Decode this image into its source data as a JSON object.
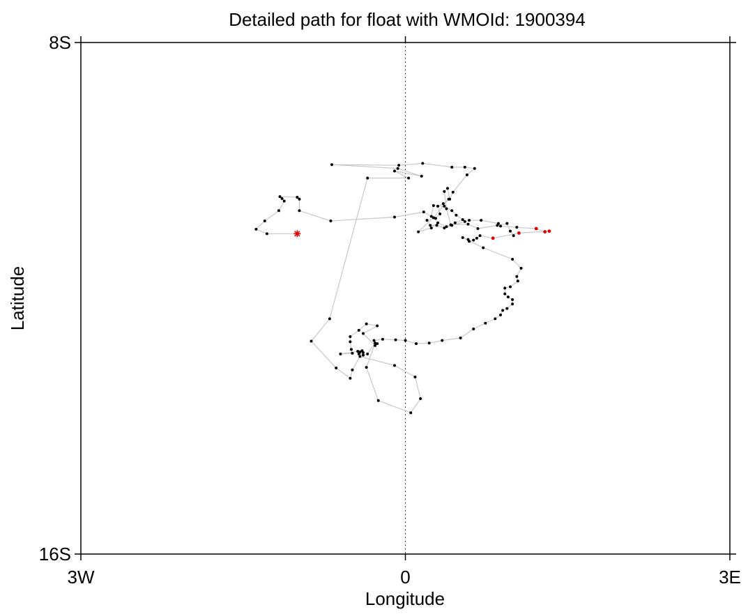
{
  "chart_data": {
    "type": "scatter",
    "title": "Detailed path for float with WMOId: 1900394",
    "xlabel": "Longitude",
    "ylabel": "Latitude",
    "xlim": [
      -3,
      3
    ],
    "ylim": [
      -16,
      -8
    ],
    "x_ticks": [
      {
        "value": -3,
        "label": "3W"
      },
      {
        "value": 0,
        "label": "0"
      },
      {
        "value": 3,
        "label": "3E"
      }
    ],
    "y_ticks": [
      {
        "value": -8,
        "label": "8S"
      },
      {
        "value": -16,
        "label": "16S"
      }
    ],
    "zero_meridian": "dotted",
    "grid": false,
    "legend": "none",
    "colors": {
      "points": "#000000",
      "path": "#c8c8c8",
      "recent": "#dd0000",
      "deploy": "#dd0000"
    },
    "deployment": {
      "x": -1.0,
      "y": -10.99
    },
    "path": [
      [
        -1.0,
        -10.99
      ],
      [
        -1.28,
        -10.99
      ],
      [
        -1.38,
        -10.92
      ],
      [
        -1.3,
        -10.79
      ],
      [
        -1.17,
        -10.63
      ],
      [
        -1.12,
        -10.48
      ],
      [
        -1.14,
        -10.44
      ],
      [
        -1.16,
        -10.41
      ],
      [
        -1.0,
        -10.42
      ],
      [
        -0.98,
        -10.45
      ],
      [
        -0.98,
        -10.63
      ],
      [
        -0.69,
        -10.79
      ],
      [
        -0.1,
        -10.73
      ],
      [
        0.17,
        -10.65
      ],
      [
        0.24,
        -10.72
      ],
      [
        0.26,
        -10.55
      ],
      [
        0.36,
        -10.56
      ],
      [
        0.43,
        -10.63
      ],
      [
        0.47,
        -10.7
      ],
      [
        0.53,
        -10.77
      ],
      [
        0.46,
        -10.82
      ],
      [
        0.38,
        -10.88
      ],
      [
        0.3,
        -10.82
      ],
      [
        0.24,
        -10.9
      ],
      [
        0.12,
        -10.96
      ],
      [
        0.26,
        -10.74
      ],
      [
        0.4,
        -10.45
      ],
      [
        0.35,
        -10.52
      ],
      [
        0.3,
        -10.56
      ],
      [
        0.32,
        -10.68
      ],
      [
        0.28,
        -10.75
      ],
      [
        0.2,
        -10.78
      ],
      [
        0.23,
        -10.86
      ],
      [
        0.29,
        -10.86
      ],
      [
        0.36,
        -10.9
      ],
      [
        0.43,
        -10.86
      ],
      [
        0.55,
        -10.8
      ],
      [
        0.59,
        -10.78
      ],
      [
        0.7,
        -10.78
      ],
      [
        0.86,
        -10.83
      ],
      [
        0.88,
        -10.87
      ],
      [
        1.03,
        -10.89
      ],
      [
        1.21,
        -10.91
      ],
      [
        1.29,
        -10.96
      ],
      [
        1.33,
        -10.95
      ],
      [
        1.05,
        -10.98
      ],
      [
        0.81,
        -11.06
      ],
      [
        0.69,
        -11.02
      ],
      [
        0.66,
        -11.06
      ],
      [
        0.63,
        -11.09
      ],
      [
        0.59,
        -11.11
      ],
      [
        0.58,
        -11.08
      ],
      [
        0.53,
        -11.05
      ],
      [
        0.72,
        -11.21
      ],
      [
        0.99,
        -11.39
      ],
      [
        1.07,
        -11.53
      ],
      [
        1.03,
        -11.66
      ],
      [
        1.04,
        -11.73
      ],
      [
        0.97,
        -11.82
      ],
      [
        0.92,
        -11.84
      ],
      [
        0.92,
        -11.93
      ],
      [
        0.95,
        -11.98
      ],
      [
        0.99,
        -12.02
      ],
      [
        0.99,
        -12.09
      ],
      [
        0.94,
        -12.16
      ],
      [
        0.9,
        -12.19
      ],
      [
        0.88,
        -12.26
      ],
      [
        0.83,
        -12.32
      ],
      [
        0.74,
        -12.39
      ],
      [
        0.63,
        -12.48
      ],
      [
        0.51,
        -12.62
      ],
      [
        0.34,
        -12.66
      ],
      [
        0.22,
        -12.7
      ],
      [
        0.1,
        -12.71
      ],
      [
        0.0,
        -12.66
      ],
      [
        -0.09,
        -12.65
      ],
      [
        -0.21,
        -12.64
      ],
      [
        -0.29,
        -12.66
      ],
      [
        -0.26,
        -12.71
      ],
      [
        -0.28,
        -12.74
      ],
      [
        -0.39,
        -12.55
      ],
      [
        -0.26,
        -12.43
      ],
      [
        -0.36,
        -12.4
      ],
      [
        -0.43,
        -12.5
      ],
      [
        -0.51,
        -12.6
      ],
      [
        -0.51,
        -12.68
      ],
      [
        -0.5,
        -12.8
      ],
      [
        -0.49,
        -12.86
      ],
      [
        -0.6,
        -12.87
      ],
      [
        -0.44,
        -12.83
      ],
      [
        -0.4,
        -12.82
      ],
      [
        -0.42,
        -12.84
      ],
      [
        -0.39,
        -12.85
      ],
      [
        -0.43,
        -12.87
      ],
      [
        -0.39,
        -12.89
      ],
      [
        -0.35,
        -12.87
      ],
      [
        -0.28,
        -12.7
      ],
      [
        -0.36,
        -13.08
      ],
      [
        -0.25,
        -13.6
      ],
      [
        0.05,
        -13.79
      ],
      [
        0.14,
        -13.57
      ],
      [
        0.09,
        -13.23
      ],
      [
        -0.1,
        -13.05
      ],
      [
        -0.42,
        -12.91
      ],
      [
        -0.49,
        -13.12
      ],
      [
        -0.51,
        -13.25
      ],
      [
        -0.64,
        -13.09
      ],
      [
        -0.87,
        -12.67
      ],
      [
        -0.7,
        -12.32
      ],
      [
        -0.35,
        -10.12
      ],
      [
        0.03,
        -10.12
      ],
      [
        -0.1,
        -10.01
      ],
      [
        0.15,
        -10.09
      ],
      [
        -0.07,
        -9.97
      ],
      [
        -0.68,
        -9.91
      ],
      [
        -0.06,
        -9.92
      ],
      [
        0.16,
        -9.89
      ],
      [
        0.43,
        -9.95
      ],
      [
        0.55,
        -9.95
      ],
      [
        0.64,
        -9.97
      ],
      [
        0.57,
        -10.07
      ],
      [
        0.44,
        -10.34
      ],
      [
        0.41,
        -10.45
      ],
      [
        0.39,
        -10.28
      ],
      [
        0.36,
        -10.33
      ],
      [
        0.38,
        -10.6
      ],
      [
        0.42,
        -10.85
      ],
      [
        0.58,
        -10.84
      ],
      [
        0.67,
        -10.91
      ],
      [
        0.85,
        -10.86
      ],
      [
        0.94,
        -10.83
      ],
      [
        0.97,
        -10.95
      ],
      [
        1.0,
        -11.02
      ]
    ],
    "recent_points": [
      [
        1.21,
        -10.91
      ],
      [
        1.29,
        -10.96
      ],
      [
        1.33,
        -10.95
      ],
      [
        1.05,
        -10.98
      ],
      [
        0.81,
        -11.06
      ]
    ]
  }
}
